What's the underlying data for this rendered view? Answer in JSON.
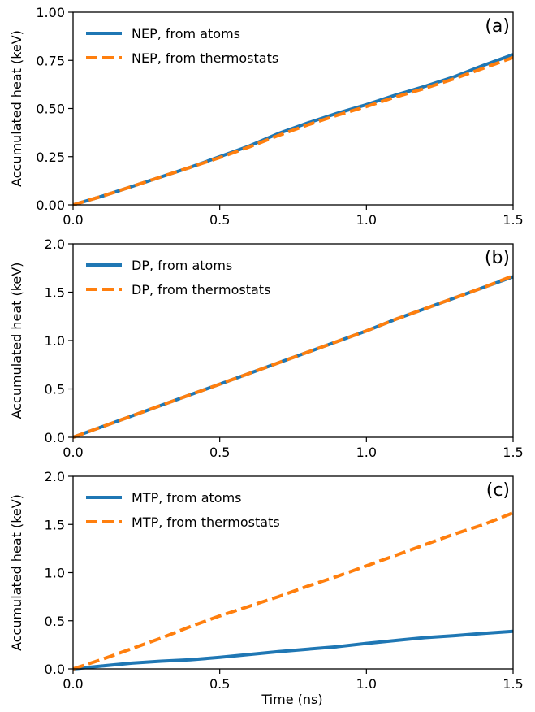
{
  "colors": {
    "series1": "#1f77b4",
    "series2": "#ff7f0e"
  },
  "shared_xlabel": "Time (ns)",
  "chart_data": [
    {
      "type": "line",
      "panel": "(a)",
      "xlabel": "",
      "ylabel": "Accumulated heat (keV)",
      "xlim": [
        0,
        1.5
      ],
      "ylim": [
        0,
        1.0
      ],
      "xticks": [
        0.0,
        0.5,
        1.0,
        1.5
      ],
      "xtick_labels": [
        "0.0",
        "0.5",
        "1.0",
        "1.5"
      ],
      "yticks": [
        0,
        0.25,
        0.5,
        0.75,
        1.0
      ],
      "ytick_labels": [
        "0.00",
        "0.25",
        "0.50",
        "0.75",
        "1.00"
      ],
      "grid": false,
      "legend_position": "top-left",
      "x": [
        0,
        0.1,
        0.2,
        0.3,
        0.4,
        0.5,
        0.6,
        0.7,
        0.8,
        0.9,
        1.0,
        1.1,
        1.2,
        1.3,
        1.4,
        1.5
      ],
      "series": [
        {
          "name": "NEP, from atoms",
          "style": "solid",
          "values": [
            0,
            0.045,
            0.095,
            0.145,
            0.195,
            0.25,
            0.305,
            0.37,
            0.425,
            0.475,
            0.52,
            0.57,
            0.615,
            0.665,
            0.725,
            0.78
          ]
        },
        {
          "name": "NEP, from thermostats",
          "style": "dashed",
          "values": [
            0,
            0.045,
            0.095,
            0.145,
            0.195,
            0.245,
            0.3,
            0.36,
            0.415,
            0.465,
            0.51,
            0.56,
            0.605,
            0.655,
            0.71,
            0.765
          ]
        }
      ]
    },
    {
      "type": "line",
      "panel": "(b)",
      "xlabel": "",
      "ylabel": "Accumulated heat (keV)",
      "xlim": [
        0,
        1.5
      ],
      "ylim": [
        0,
        2.0
      ],
      "xticks": [
        0.0,
        0.5,
        1.0,
        1.5
      ],
      "xtick_labels": [
        "0.0",
        "0.5",
        "1.0",
        "1.5"
      ],
      "yticks": [
        0,
        0.5,
        1.0,
        1.5,
        2.0
      ],
      "ytick_labels": [
        "0.0",
        "0.5",
        "1.0",
        "1.5",
        "2.0"
      ],
      "grid": false,
      "legend_position": "top-left",
      "x": [
        0,
        0.1,
        0.2,
        0.3,
        0.4,
        0.5,
        0.6,
        0.7,
        0.8,
        0.9,
        1.0,
        1.1,
        1.2,
        1.3,
        1.4,
        1.5
      ],
      "series": [
        {
          "name": "DP, from atoms",
          "style": "solid",
          "values": [
            0,
            0.11,
            0.22,
            0.33,
            0.44,
            0.55,
            0.66,
            0.77,
            0.88,
            0.99,
            1.1,
            1.22,
            1.33,
            1.44,
            1.55,
            1.66
          ]
        },
        {
          "name": "DP, from thermostats",
          "style": "dashed",
          "values": [
            0,
            0.11,
            0.22,
            0.33,
            0.44,
            0.55,
            0.66,
            0.77,
            0.88,
            0.99,
            1.1,
            1.22,
            1.33,
            1.44,
            1.55,
            1.67
          ]
        }
      ]
    },
    {
      "type": "line",
      "panel": "(c)",
      "xlabel": "Time (ns)",
      "ylabel": "Accumulated heat (keV)",
      "xlim": [
        0,
        1.5
      ],
      "ylim": [
        0,
        2.0
      ],
      "xticks": [
        0.0,
        0.5,
        1.0,
        1.5
      ],
      "xtick_labels": [
        "0.0",
        "0.5",
        "1.0",
        "1.5"
      ],
      "yticks": [
        0,
        0.5,
        1.0,
        1.5,
        2.0
      ],
      "ytick_labels": [
        "0.0",
        "0.5",
        "1.0",
        "1.5",
        "2.0"
      ],
      "grid": false,
      "legend_position": "top-left",
      "x": [
        0,
        0.1,
        0.2,
        0.3,
        0.4,
        0.5,
        0.6,
        0.7,
        0.8,
        0.9,
        1.0,
        1.1,
        1.2,
        1.3,
        1.4,
        1.5
      ],
      "series": [
        {
          "name": "MTP, from atoms",
          "style": "solid",
          "values": [
            0,
            0.03,
            0.06,
            0.08,
            0.095,
            0.12,
            0.15,
            0.18,
            0.205,
            0.23,
            0.265,
            0.295,
            0.325,
            0.345,
            0.37,
            0.39
          ]
        },
        {
          "name": "MTP, from thermostats",
          "style": "dashed",
          "values": [
            0,
            0.1,
            0.21,
            0.32,
            0.44,
            0.55,
            0.65,
            0.75,
            0.86,
            0.96,
            1.07,
            1.18,
            1.29,
            1.4,
            1.5,
            1.62
          ]
        }
      ]
    }
  ]
}
